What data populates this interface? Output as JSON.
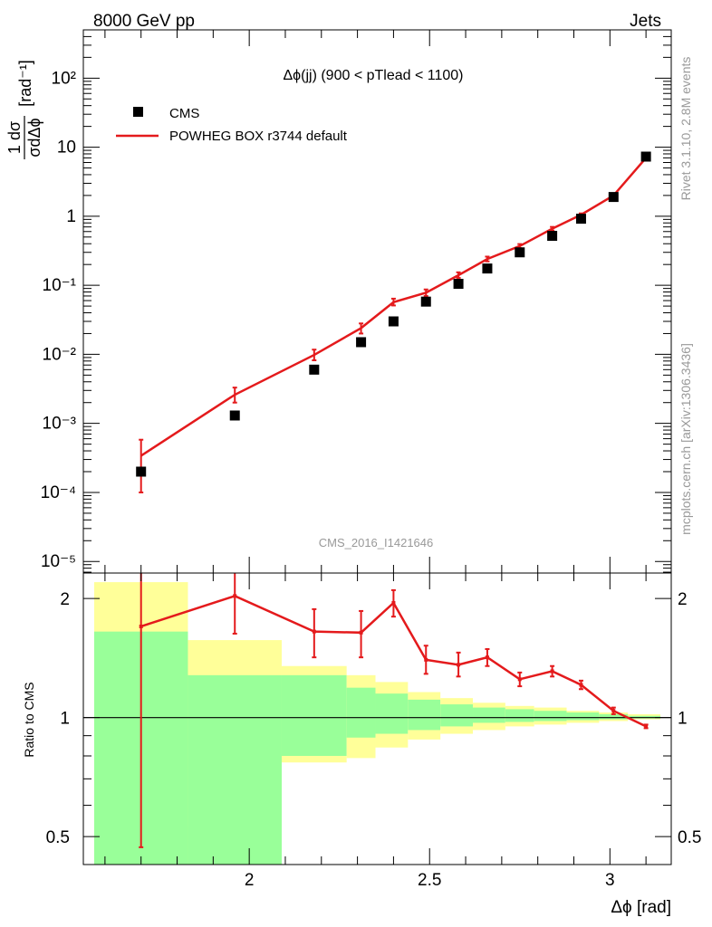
{
  "header": {
    "left": "8000 GeV pp",
    "right": "Jets"
  },
  "side_labels": {
    "top": "Rivet 3.1.10,  2.8M events",
    "bottom": "mcplots.cern.ch [arXiv:1306.3436]"
  },
  "watermark": "CMS_2016_I1421646",
  "chart_data": [
    {
      "type": "line",
      "panel": "main",
      "title": "Δϕ(jj) (900 < pTlead <  1100)",
      "ylabel": "1/σ dσ/dΔϕ [rad⁻¹]",
      "yscale": "log",
      "ylim": [
        6.8e-06,
        500
      ],
      "xlim": [
        1.54,
        3.17
      ],
      "ytick_labels": [
        "10⁻⁵",
        "10⁻⁴",
        "10⁻³",
        "10⁻²",
        "10⁻¹",
        "1",
        "10",
        "10²"
      ],
      "x": [
        1.7,
        1.96,
        2.18,
        2.31,
        2.4,
        2.49,
        2.58,
        2.66,
        2.75,
        2.84,
        2.92,
        3.01,
        3.1
      ],
      "legend_placement": "top-left",
      "series": [
        {
          "name": "CMS",
          "style": "markers",
          "color": "#000000",
          "values": [
            0.0002,
            0.0013,
            0.006,
            0.015,
            0.03,
            0.058,
            0.105,
            0.175,
            0.3,
            0.52,
            0.92,
            1.9,
            7.3
          ]
        },
        {
          "name": "POWHEG BOX r3744 default",
          "style": "line",
          "color": "#e41a1c",
          "values": [
            0.00034,
            0.0026,
            0.0098,
            0.024,
            0.057,
            0.078,
            0.14,
            0.24,
            0.37,
            0.66,
            1.05,
            2.0,
            7.0
          ],
          "err_lo": [
            0.0001,
            0.002,
            0.0082,
            0.02,
            0.051,
            0.07,
            0.128,
            0.222,
            0.345,
            0.62,
            1.0,
            1.94,
            6.8
          ],
          "err_hi": [
            0.00058,
            0.0033,
            0.0117,
            0.028,
            0.064,
            0.087,
            0.154,
            0.26,
            0.395,
            0.7,
            1.1,
            2.06,
            7.2
          ]
        }
      ]
    },
    {
      "type": "line",
      "panel": "ratio",
      "ylabel": "Ratio to CMS",
      "xlabel": "Δϕ [rad]",
      "yscale": "log",
      "ylim": [
        0.425,
        2.32
      ],
      "xlim": [
        1.54,
        3.17
      ],
      "ytick_labels": [
        "0.5",
        "1",
        "2"
      ],
      "xtick_labels": [
        "2",
        "2.5",
        "3"
      ],
      "reference_line": 1,
      "bands": {
        "edges": [
          1.57,
          1.83,
          2.09,
          2.27,
          2.35,
          2.44,
          2.53,
          2.62,
          2.71,
          2.79,
          2.88,
          2.97,
          3.05,
          3.14
        ],
        "stat_color": "#99ff99",
        "total_color": "#ffff99",
        "stat_lo": [
          0.3,
          0.3,
          0.8,
          0.89,
          0.91,
          0.93,
          0.95,
          0.97,
          0.975,
          0.98,
          0.985,
          0.99,
          0.995
        ],
        "stat_hi": [
          1.65,
          1.28,
          1.28,
          1.19,
          1.15,
          1.11,
          1.08,
          1.06,
          1.05,
          1.04,
          1.03,
          1.02,
          1.01
        ],
        "tot_lo": [
          0.3,
          0.53,
          0.77,
          0.79,
          0.84,
          0.88,
          0.91,
          0.93,
          0.95,
          0.96,
          0.97,
          0.98,
          0.99
        ],
        "tot_hi": [
          2.2,
          1.57,
          1.35,
          1.28,
          1.23,
          1.16,
          1.12,
          1.09,
          1.07,
          1.06,
          1.04,
          1.03,
          1.02
        ]
      },
      "series": [
        {
          "name": "POWHEG BOX r3744 default",
          "color": "#e41a1c",
          "x": [
            1.7,
            1.96,
            2.18,
            2.31,
            2.4,
            2.49,
            2.58,
            2.66,
            2.75,
            2.84,
            2.92,
            3.01,
            3.1
          ],
          "values": [
            1.7,
            2.03,
            1.65,
            1.64,
            1.95,
            1.4,
            1.36,
            1.42,
            1.25,
            1.31,
            1.21,
            1.04,
            0.95
          ],
          "err_lo": [
            0.47,
            1.63,
            1.42,
            1.42,
            1.8,
            1.29,
            1.27,
            1.35,
            1.2,
            1.27,
            1.18,
            1.02,
            0.94
          ],
          "err_hi": [
            2.4,
            2.4,
            1.88,
            1.86,
            2.1,
            1.52,
            1.46,
            1.49,
            1.3,
            1.35,
            1.24,
            1.06,
            0.96
          ]
        }
      ]
    }
  ]
}
